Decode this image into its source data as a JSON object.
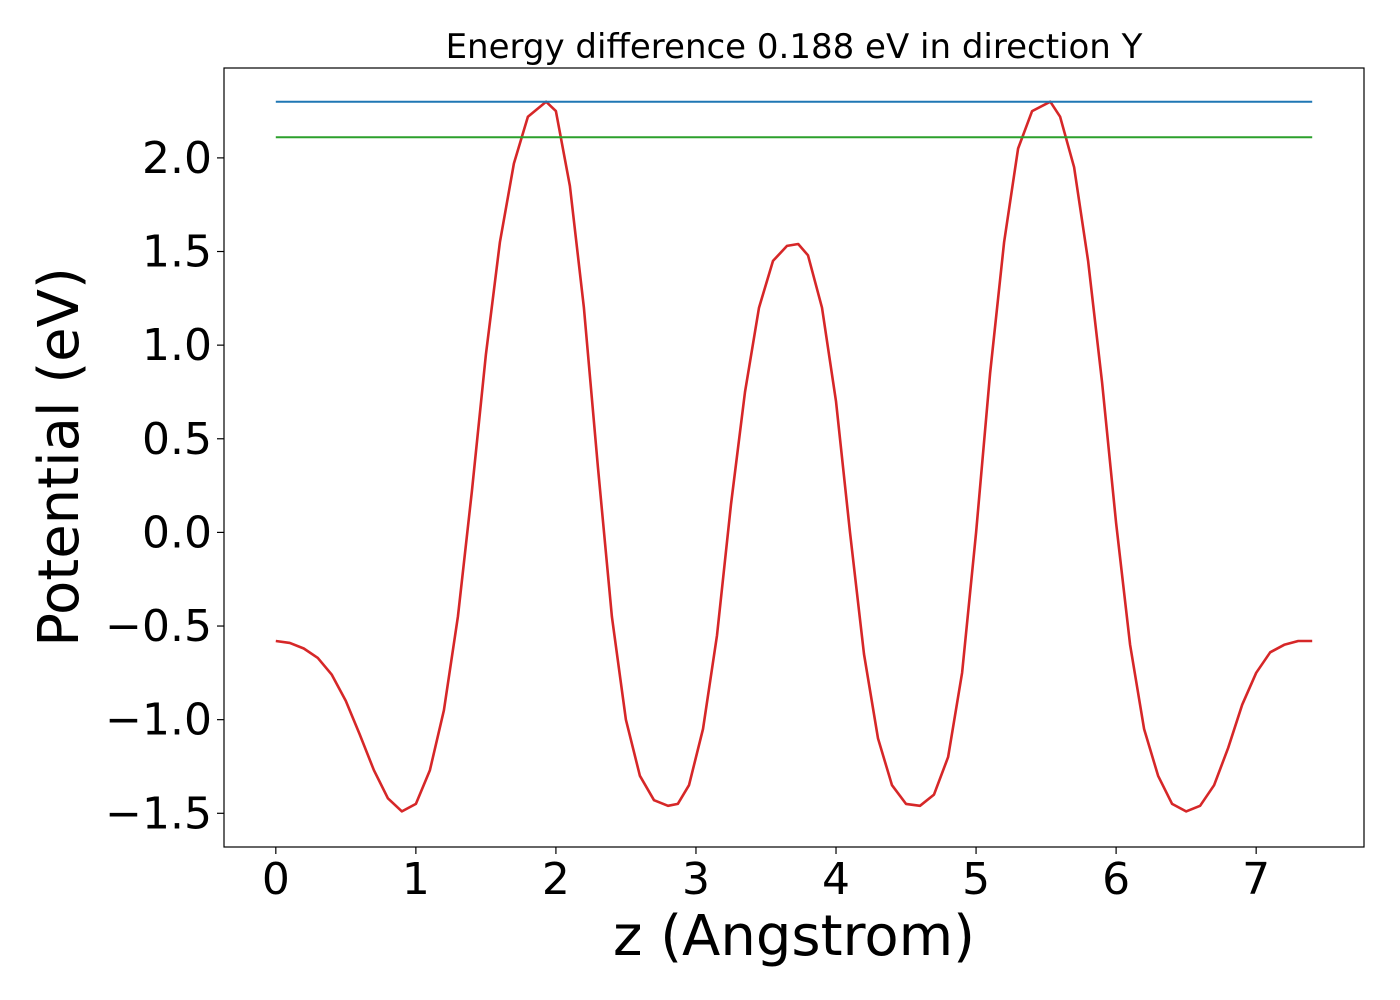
{
  "chart_data": {
    "type": "line",
    "title": "Energy difference 0.188 eV in direction Y",
    "xlabel": "z (Angstrom)",
    "ylabel": "Potential (eV)",
    "xlim": [
      -0.37,
      7.77
    ],
    "ylim": [
      -1.68,
      2.48
    ],
    "xticks": [
      0,
      1,
      2,
      3,
      4,
      5,
      6,
      7
    ],
    "xtick_labels": [
      "0",
      "1",
      "2",
      "3",
      "4",
      "5",
      "6",
      "7"
    ],
    "yticks": [
      -1.5,
      -1.0,
      -0.5,
      0.0,
      0.5,
      1.0,
      1.5,
      2.0
    ],
    "ytick_labels": [
      "−1.5",
      "−1.0",
      "−0.5",
      "0.0",
      "0.5",
      "1.0",
      "1.5",
      "2.0"
    ],
    "grid": false,
    "legend": "none",
    "series": [
      {
        "color": "#d62728",
        "x": [
          0.0,
          0.1,
          0.2,
          0.3,
          0.4,
          0.5,
          0.6,
          0.7,
          0.8,
          0.9,
          1.0,
          1.1,
          1.2,
          1.3,
          1.4,
          1.5,
          1.6,
          1.7,
          1.8,
          1.93,
          2.0,
          2.1,
          2.2,
          2.3,
          2.4,
          2.5,
          2.6,
          2.7,
          2.8,
          2.87,
          2.95,
          3.05,
          3.15,
          3.25,
          3.35,
          3.45,
          3.55,
          3.65,
          3.73,
          3.8,
          3.9,
          4.0,
          4.1,
          4.2,
          4.3,
          4.4,
          4.5,
          4.6,
          4.7,
          4.8,
          4.9,
          5.0,
          5.1,
          5.2,
          5.3,
          5.4,
          5.53,
          5.6,
          5.7,
          5.8,
          5.9,
          6.0,
          6.1,
          6.2,
          6.3,
          6.4,
          6.5,
          6.6,
          6.7,
          6.8,
          6.9,
          7.0,
          7.1,
          7.2,
          7.3,
          7.4
        ],
        "y": [
          -0.58,
          -0.59,
          -0.62,
          -0.67,
          -0.76,
          -0.9,
          -1.08,
          -1.27,
          -1.42,
          -1.49,
          -1.45,
          -1.27,
          -0.95,
          -0.45,
          0.22,
          0.95,
          1.55,
          1.97,
          2.22,
          2.3,
          2.25,
          1.85,
          1.2,
          0.35,
          -0.45,
          -1.0,
          -1.3,
          -1.43,
          -1.46,
          -1.45,
          -1.35,
          -1.05,
          -0.55,
          0.15,
          0.75,
          1.2,
          1.45,
          1.53,
          1.54,
          1.48,
          1.2,
          0.7,
          0.0,
          -0.65,
          -1.1,
          -1.35,
          -1.45,
          -1.46,
          -1.4,
          -1.2,
          -0.75,
          0.0,
          0.85,
          1.55,
          2.05,
          2.25,
          2.3,
          2.22,
          1.95,
          1.45,
          0.8,
          0.05,
          -0.6,
          -1.05,
          -1.3,
          -1.45,
          -1.49,
          -1.46,
          -1.35,
          -1.15,
          -0.92,
          -0.75,
          -0.64,
          -0.6,
          -0.58,
          -0.58
        ]
      },
      {
        "color": "#1f77b4",
        "x": [
          0.0,
          7.4
        ],
        "y": [
          2.3,
          2.3
        ]
      },
      {
        "color": "#2ca02c",
        "x": [
          0.0,
          7.4
        ],
        "y": [
          2.11,
          2.11
        ]
      }
    ]
  }
}
